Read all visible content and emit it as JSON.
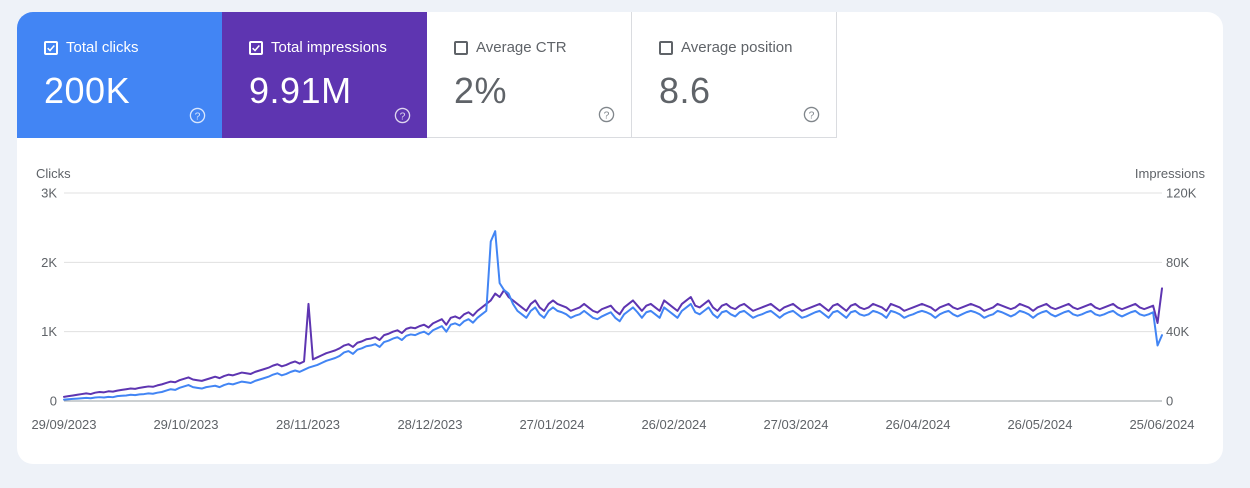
{
  "metrics": [
    {
      "label": "Total clicks",
      "value": "200K",
      "checked": true,
      "color": "#4285f4"
    },
    {
      "label": "Total impressions",
      "value": "9.91M",
      "checked": true,
      "color": "#5e35b1"
    },
    {
      "label": "Average CTR",
      "value": "2%",
      "checked": false
    },
    {
      "label": "Average position",
      "value": "8.6",
      "checked": false
    }
  ],
  "chart_data": {
    "type": "line",
    "left_axis_label": "Clicks",
    "right_axis_label": "Impressions",
    "left_ticks": [
      "0",
      "1K",
      "2K",
      "3K"
    ],
    "left_ylim": [
      0,
      3000
    ],
    "right_ticks": [
      "0",
      "40K",
      "80K",
      "120K"
    ],
    "right_ylim": [
      0,
      120000
    ],
    "x_ticks": [
      "29/09/2023",
      "29/10/2023",
      "28/11/2023",
      "28/12/2023",
      "27/01/2024",
      "26/02/2024",
      "27/03/2024",
      "26/04/2024",
      "26/05/2024",
      "25/06/2024"
    ],
    "grid": true,
    "series": [
      {
        "name": "Total clicks",
        "axis": "left",
        "color": "#4285f4",
        "values": [
          20,
          25,
          30,
          35,
          40,
          45,
          40,
          50,
          55,
          50,
          60,
          55,
          70,
          75,
          80,
          90,
          85,
          95,
          100,
          110,
          105,
          120,
          130,
          150,
          170,
          160,
          190,
          210,
          230,
          200,
          190,
          180,
          200,
          210,
          220,
          200,
          230,
          250,
          240,
          260,
          280,
          270,
          260,
          290,
          310,
          330,
          350,
          380,
          400,
          370,
          390,
          420,
          440,
          420,
          450,
          480,
          500,
          520,
          550,
          580,
          600,
          620,
          650,
          700,
          720,
          680,
          740,
          760,
          790,
          800,
          820,
          780,
          850,
          870,
          900,
          920,
          880,
          940,
          960,
          950,
          980,
          1000,
          960,
          1020,
          1050,
          1080,
          1000,
          1100,
          1120,
          1090,
          1150,
          1180,
          1130,
          1200,
          1250,
          1300,
          2300,
          2450,
          1700,
          1600,
          1550,
          1400,
          1300,
          1250,
          1200,
          1300,
          1350,
          1250,
          1200,
          1300,
          1350,
          1300,
          1280,
          1250,
          1200,
          1230,
          1250,
          1300,
          1250,
          1200,
          1180,
          1220,
          1250,
          1280,
          1200,
          1150,
          1250,
          1300,
          1350,
          1280,
          1200,
          1280,
          1300,
          1250,
          1200,
          1350,
          1300,
          1250,
          1200,
          1300,
          1350,
          1400,
          1280,
          1250,
          1300,
          1350,
          1250,
          1200,
          1280,
          1300,
          1250,
          1220,
          1280,
          1300,
          1250,
          1200,
          1230,
          1250,
          1280,
          1300,
          1250,
          1200,
          1250,
          1280,
          1300,
          1250,
          1200,
          1220,
          1250,
          1280,
          1300,
          1250,
          1200,
          1280,
          1300,
          1250,
          1200,
          1280,
          1300,
          1250,
          1230,
          1250,
          1300,
          1280,
          1250,
          1200,
          1300,
          1280,
          1250,
          1200,
          1230,
          1250,
          1280,
          1300,
          1280,
          1250,
          1200,
          1250,
          1280,
          1300,
          1250,
          1220,
          1250,
          1280,
          1300,
          1280,
          1250,
          1200,
          1230,
          1250,
          1300,
          1280,
          1250,
          1220,
          1250,
          1300,
          1280,
          1250,
          1200,
          1250,
          1280,
          1300,
          1250,
          1220,
          1250,
          1280,
          1300,
          1250,
          1230,
          1250,
          1280,
          1300,
          1250,
          1230,
          1250,
          1280,
          1300,
          1250,
          1220,
          1250,
          1280,
          1300,
          1250,
          1230,
          1250,
          1280,
          800,
          950
        ]
      },
      {
        "name": "Total impressions",
        "axis": "right",
        "color": "#5e35b1",
        "values": [
          2400,
          2800,
          3200,
          3600,
          4000,
          4400,
          4000,
          4800,
          5200,
          5000,
          5600,
          5400,
          6000,
          6400,
          6800,
          7200,
          7000,
          7600,
          8000,
          8400,
          8200,
          9000,
          9600,
          10400,
          11200,
          10800,
          12000,
          12800,
          13600,
          12400,
          12000,
          11600,
          12400,
          13200,
          14000,
          13200,
          14400,
          15200,
          14800,
          15600,
          16400,
          16000,
          15600,
          16800,
          17600,
          18400,
          19200,
          20400,
          21200,
          20000,
          20800,
          22000,
          22800,
          21600,
          22800,
          56000,
          24000,
          25200,
          26400,
          27600,
          28400,
          29200,
          30400,
          32000,
          32800,
          31200,
          33600,
          34400,
          35600,
          36000,
          36800,
          35200,
          38000,
          38800,
          40000,
          40800,
          39200,
          41600,
          42400,
          42000,
          43200,
          44000,
          42400,
          44800,
          46000,
          47200,
          44000,
          48000,
          48800,
          47600,
          50000,
          51200,
          49200,
          52000,
          54000,
          56000,
          58000,
          62000,
          60000,
          64000,
          60000,
          58000,
          56000,
          54000,
          52000,
          56000,
          58000,
          54000,
          52000,
          56000,
          58000,
          56000,
          55000,
          54000,
          52000,
          53000,
          54000,
          56000,
          54000,
          52000,
          51000,
          53000,
          54000,
          55000,
          52000,
          50000,
          54000,
          56000,
          58000,
          55000,
          52000,
          55000,
          56000,
          54000,
          52000,
          58000,
          56000,
          54000,
          52000,
          56000,
          58000,
          60000,
          55000,
          54000,
          56000,
          58000,
          54000,
          52000,
          55000,
          56000,
          54000,
          53000,
          55000,
          56000,
          54000,
          52000,
          53000,
          54000,
          55000,
          56000,
          54000,
          52000,
          54000,
          55000,
          56000,
          54000,
          52000,
          53000,
          54000,
          55000,
          56000,
          54000,
          52000,
          55000,
          56000,
          54000,
          52000,
          55000,
          56000,
          54000,
          53000,
          54000,
          56000,
          55000,
          54000,
          52000,
          56000,
          55000,
          54000,
          52000,
          53000,
          54000,
          55000,
          56000,
          55000,
          54000,
          52000,
          54000,
          55000,
          56000,
          54000,
          53000,
          54000,
          55000,
          56000,
          55000,
          54000,
          52000,
          53000,
          54000,
          56000,
          55000,
          54000,
          53000,
          54000,
          56000,
          55000,
          54000,
          52000,
          54000,
          55000,
          56000,
          54000,
          53000,
          54000,
          55000,
          56000,
          54000,
          53000,
          54000,
          55000,
          56000,
          54000,
          53000,
          54000,
          55000,
          56000,
          54000,
          53000,
          54000,
          55000,
          56000,
          54000,
          53000,
          54000,
          55000,
          45000,
          65000
        ]
      }
    ]
  }
}
